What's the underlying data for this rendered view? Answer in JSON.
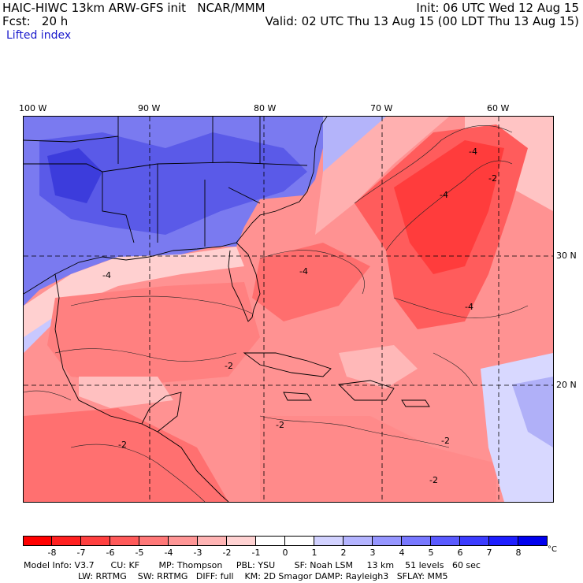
{
  "header": {
    "model_line": "HAIC-HIWC 13km ARW-GFS init   NCAR/MMM",
    "fcst_line": "Fcst:   20 h",
    "field_name": "Lifted index",
    "init_line": "Init: 06 UTC Wed 12 Aug 15",
    "valid_line": "Valid: 02 UTC Thu 13 Aug 15 (00 LDT Thu 13 Aug 15)"
  },
  "map": {
    "lon_labels": [
      "100 W",
      "90 W",
      "80 W",
      "70 W",
      "60 W"
    ],
    "lat_labels": [
      "30 N",
      "20 N"
    ],
    "contour_labels": [
      "-4",
      "-4",
      "-4",
      "-4",
      "-2",
      "-2",
      "-2",
      "-2",
      "-2",
      "-2",
      "-4"
    ],
    "grid_lons": [
      -90,
      -80,
      -70,
      -60
    ],
    "grid_lats": [
      30,
      20
    ]
  },
  "colorbar": {
    "ticks": [
      "-8",
      "-7",
      "-6",
      "-5",
      "-4",
      "-3",
      "-2",
      "-1",
      "0",
      "1",
      "2",
      "3",
      "4",
      "5",
      "6",
      "7",
      "8"
    ],
    "unit": "°C",
    "colors": [
      "#ff0000",
      "#ff2020",
      "#ff4040",
      "#ff5a5a",
      "#ff7878",
      "#ff9696",
      "#ffb4b4",
      "#ffd2d2",
      "#ffffff",
      "#ffffff",
      "#d2d2ff",
      "#b4b4ff",
      "#9696ff",
      "#7878ff",
      "#5a5aff",
      "#3c3cff",
      "#1e1eff",
      "#0000ee"
    ]
  },
  "footer": {
    "line1": "Model Info: V3.7      CU: KF       MP: Thompson     PBL: YSU       SF: Noah LSM     13 km    51 levels   60 sec",
    "line2": "LW: RRTMG    SW: RRTMG   DIFF: full    KM: 2D Smagor DAMP: Rayleigh3   SFLAY: MM5"
  }
}
